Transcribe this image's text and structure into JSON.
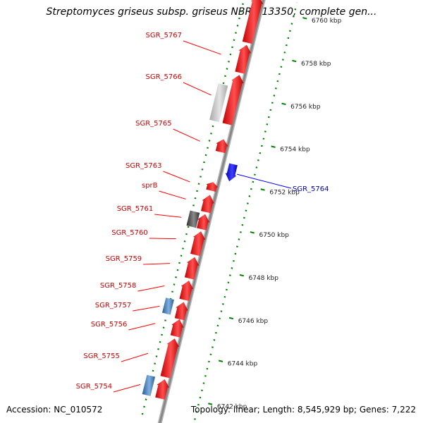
{
  "title": "Streptomyces griseus subsp. griseus NBRC 13350, complete gen...",
  "footer": {
    "accession": "Accession: NC_010572",
    "summary": "Topology: linear; Length: 8,545,929 bp; Genes: 7,222"
  },
  "colors": {
    "forward_gene": "#ff0000",
    "reverse_gene": "#0000ff",
    "gene_label_forward": "#cc0000",
    "gene_label_reverse": "#0000aa",
    "strand_track": "#008000",
    "backbone": "#888888",
    "pseudo_light": "#c8c8c8",
    "pseudo_dark": "#555555",
    "rna_blue": "#4a86c0"
  },
  "scale": {
    "ticks": [
      {
        "kbp": 6742,
        "label": "6742 kbp"
      },
      {
        "kbp": 6744,
        "label": "6744 kbp"
      },
      {
        "kbp": 6746,
        "label": "6746 kbp"
      },
      {
        "kbp": 6748,
        "label": "6748 kbp"
      },
      {
        "kbp": 6750,
        "label": "6750 kbp"
      },
      {
        "kbp": 6752,
        "label": "6752 kbp"
      },
      {
        "kbp": 6754,
        "label": "6754 kbp"
      },
      {
        "kbp": 6756,
        "label": "6756 kbp"
      },
      {
        "kbp": 6758,
        "label": "6758 kbp"
      },
      {
        "kbp": 6760,
        "label": "6760 kbp"
      }
    ]
  },
  "genes": [
    {
      "name": "SGR_5754",
      "start": 6741.7,
      "end": 6742.6,
      "strand": "+",
      "kind": "gene"
    },
    {
      "name": "",
      "start": 6741.7,
      "end": 6742.6,
      "strand": "+",
      "kind": "rna_blue"
    },
    {
      "name": "SGR_5755",
      "start": 6742.7,
      "end": 6744.5,
      "strand": "+",
      "kind": "gene"
    },
    {
      "name": "SGR_5756",
      "start": 6744.6,
      "end": 6745.4,
      "strand": "+",
      "kind": "gene"
    },
    {
      "name": "SGR_5757",
      "start": 6745.4,
      "end": 6746.2,
      "strand": "+",
      "kind": "gene"
    },
    {
      "name": "",
      "start": 6745.5,
      "end": 6746.2,
      "strand": "+",
      "kind": "rna_blue"
    },
    {
      "name": "SGR_5758",
      "start": 6746.3,
      "end": 6747.2,
      "strand": "+",
      "kind": "gene"
    },
    {
      "name": "SGR_5759",
      "start": 6747.3,
      "end": 6748.3,
      "strand": "+",
      "kind": "gene"
    },
    {
      "name": "SGR_5760",
      "start": 6748.4,
      "end": 6749.5,
      "strand": "+",
      "kind": "gene"
    },
    {
      "name": "SGR_5761",
      "start": 6749.6,
      "end": 6750.3,
      "strand": "+",
      "kind": "gene"
    },
    {
      "name": "",
      "start": 6749.6,
      "end": 6750.3,
      "strand": "+",
      "kind": "pseudo_dark"
    },
    {
      "name": "sprB",
      "start": 6750.4,
      "end": 6751.2,
      "strand": "+",
      "kind": "gene"
    },
    {
      "name": "SGR_5763",
      "start": 6751.4,
      "end": 6751.8,
      "strand": "+",
      "kind": "gene"
    },
    {
      "name": "SGR_5764",
      "start": 6752.0,
      "end": 6752.8,
      "strand": "-",
      "kind": "gene"
    },
    {
      "name": "SGR_5765",
      "start": 6753.2,
      "end": 6753.8,
      "strand": "+",
      "kind": "gene"
    },
    {
      "name": "SGR_5766",
      "start": 6754.5,
      "end": 6756.8,
      "strand": "+",
      "kind": "gene"
    },
    {
      "name": "",
      "start": 6754.5,
      "end": 6756.2,
      "strand": "+",
      "kind": "pseudo_light"
    },
    {
      "name": "SGR_5767",
      "start": 6756.9,
      "end": 6758.2,
      "strand": "+",
      "kind": "gene"
    },
    {
      "name": "",
      "start": 6758.3,
      "end": 6760.5,
      "strand": "+",
      "kind": "gene"
    }
  ]
}
